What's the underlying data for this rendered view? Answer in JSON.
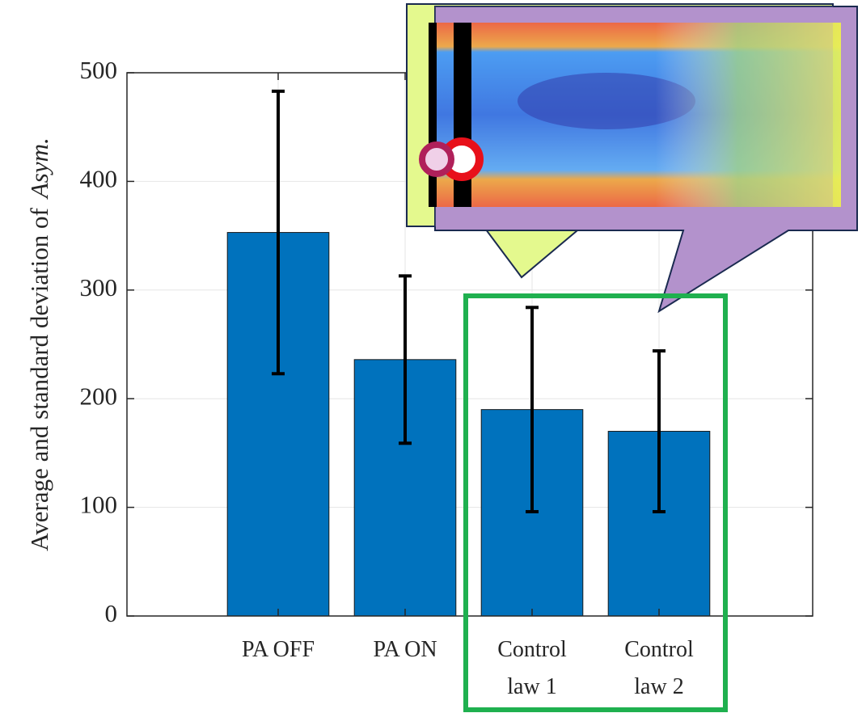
{
  "chart_data": {
    "type": "bar",
    "y_label": [
      "Average and standard deviation of",
      "Asym."
    ],
    "categories": [
      "PA OFF",
      "PA ON",
      "Control\nlaw 1",
      "Control\nlaw 2"
    ],
    "series": [
      {
        "color": "#0072bd",
        "values": [
          353,
          236,
          190,
          170
        ],
        "errors": [
          130,
          77,
          94,
          74
        ]
      }
    ],
    "ylim": [
      0,
      500
    ],
    "yticks": [
      0,
      100,
      200,
      300,
      400,
      500
    ],
    "grid": true
  }
}
